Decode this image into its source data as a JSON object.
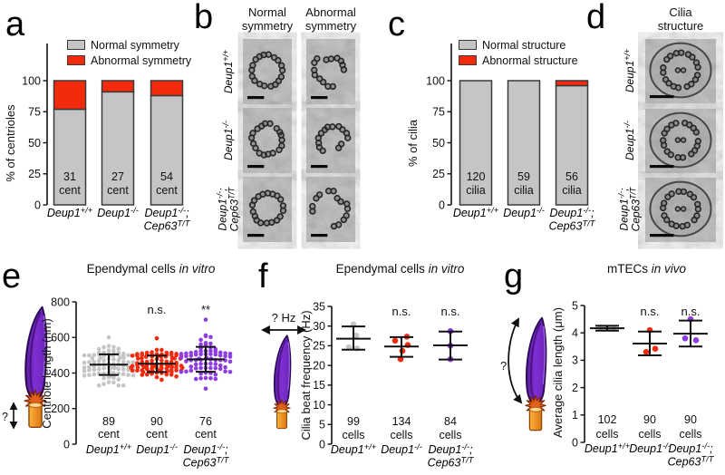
{
  "colors": {
    "gray": "#c5c5c5",
    "red": "#f42a0c",
    "purple": "#8d3ce0",
    "outline": "#3a3a3a",
    "axis": "#111111"
  },
  "genotypes": [
    {
      "lines": [
        [
          {
            "t": "Deup1"
          },
          {
            "t": "+/+",
            "sup": true
          }
        ]
      ]
    },
    {
      "lines": [
        [
          {
            "t": "Deup1"
          },
          {
            "t": "-/-",
            "sup": true
          }
        ]
      ]
    },
    {
      "lines": [
        [
          {
            "t": "Deup1"
          },
          {
            "t": "-/-",
            "sup": true
          },
          {
            "t": ";"
          }
        ],
        [
          {
            "t": "Cep63"
          },
          {
            "t": "T/T",
            "sup": true
          }
        ]
      ]
    }
  ],
  "panels": {
    "a": {
      "label": "a",
      "ylabel": "% of centrioles",
      "legend": [
        {
          "label": "Normal symmetry",
          "color": "gray"
        },
        {
          "label": "Abnormal symmetry",
          "color": "red"
        }
      ]
    },
    "b": {
      "label": "b",
      "col_headers": [
        [
          "Normal",
          "symmetry"
        ],
        [
          "Abnormal",
          "symmetry"
        ]
      ],
      "tile_kinds": [
        [
          "normal",
          "abnormal"
        ],
        [
          "normal",
          "abnormal"
        ],
        [
          "normal",
          "abnormal"
        ]
      ]
    },
    "c": {
      "label": "c",
      "ylabel": "% of cilia",
      "legend": [
        {
          "label": "Normal structure",
          "color": "gray"
        },
        {
          "label": "Abnormal structure",
          "color": "red"
        }
      ]
    },
    "d": {
      "label": "d",
      "col_header": [
        "Cilia",
        "structure"
      ],
      "tile_kinds": [
        "cilium",
        "cilium",
        "cilium"
      ]
    },
    "e": {
      "label": "e",
      "title": {
        "plain": "Ependymal cells ",
        "italic": "in vitro"
      },
      "ylabel": "Centriole length (nm)",
      "cartoon_query": "?"
    },
    "f": {
      "label": "f",
      "title": {
        "plain": "Ependymal cells ",
        "italic": "in vitro"
      },
      "ylabel": "Cilia beat frequency (Hz)",
      "cartoon_query": "? Hz"
    },
    "g": {
      "label": "g",
      "title": {
        "plain": "mTECs ",
        "italic": "in vivo"
      },
      "ylabel": "Average cilia length (μm)",
      "cartoon_query": "?"
    }
  },
  "chart_data": [
    {
      "id": "a",
      "type": "bar",
      "stacked": true,
      "title": "",
      "ylabel": "% of centrioles",
      "ylim": [
        0,
        100
      ],
      "yticks": [
        0,
        25,
        50,
        75,
        100
      ],
      "grid": false,
      "legend_position": "top-inside",
      "categories": [
        "Deup1+/+",
        "Deup1-/-",
        "Deup1-/-;Cep63T/T"
      ],
      "series": [
        {
          "name": "Normal symmetry",
          "color": "gray",
          "values": [
            77,
            91,
            88
          ]
        },
        {
          "name": "Abnormal symmetry",
          "color": "red",
          "values": [
            23,
            9,
            12
          ]
        }
      ],
      "bar_counts": [
        [
          "31",
          "cent"
        ],
        [
          "27",
          "cent"
        ],
        [
          "54",
          "cent"
        ]
      ]
    },
    {
      "id": "c",
      "type": "bar",
      "stacked": true,
      "title": "",
      "ylabel": "% of cilia",
      "ylim": [
        0,
        100
      ],
      "yticks": [
        0,
        25,
        50,
        75,
        100
      ],
      "grid": false,
      "legend_position": "top-inside",
      "categories": [
        "Deup1+/+",
        "Deup1-/-",
        "Deup1-/-;Cep63T/T"
      ],
      "series": [
        {
          "name": "Normal structure",
          "color": "gray",
          "values": [
            100,
            100,
            96
          ]
        },
        {
          "name": "Abnormal structure",
          "color": "red",
          "values": [
            0,
            0,
            4
          ]
        }
      ],
      "bar_counts": [
        [
          "120",
          "cilia"
        ],
        [
          "59",
          "cilia"
        ],
        [
          "56",
          "cilia"
        ]
      ]
    },
    {
      "id": "e",
      "type": "scatter",
      "style": "beeswarm",
      "title": "Ependymal cells in vitro",
      "ylabel": "Centriole length (nm)",
      "ylim": [
        0,
        800
      ],
      "yticks": [
        0,
        200,
        400,
        600,
        800
      ],
      "grid": false,
      "categories": [
        "Deup1+/+",
        "Deup1-/-",
        "Deup1-/-;Cep63T/T"
      ],
      "groups": [
        {
          "genotype": 0,
          "color": "gray",
          "n": 89,
          "mean": 447,
          "sd": 58,
          "min": 330,
          "max": 600,
          "count_label": [
            "89",
            "cent"
          ],
          "sig": ""
        },
        {
          "genotype": 1,
          "color": "red",
          "n": 90,
          "mean": 452,
          "sd": 46,
          "min": 362,
          "max": 595,
          "count_label": [
            "90",
            "cent"
          ],
          "sig": "n.s."
        },
        {
          "genotype": 2,
          "color": "purple",
          "n": 76,
          "mean": 477,
          "sd": 70,
          "min": 312,
          "max": 700,
          "count_label": [
            "76",
            "cent"
          ],
          "sig": "**"
        }
      ]
    },
    {
      "id": "f",
      "type": "scatter",
      "style": "points",
      "title": "Ependymal cells in vitro",
      "ylabel": "Cilia beat frequency (Hz)",
      "ylim": [
        0,
        35
      ],
      "yticks": [
        0,
        5,
        10,
        15,
        20,
        25,
        30,
        35
      ],
      "grid": false,
      "categories": [
        "Deup1+/+",
        "Deup1-/-",
        "Deup1-/-;Cep63T/T"
      ],
      "groups": [
        {
          "genotype": 0,
          "color": "gray",
          "points": [
            30.4,
            27.6,
            24.6,
            24.3
          ],
          "mean": 26.8,
          "err_low": 24.0,
          "err_high": 29.9,
          "count_label": [
            "99",
            "cells"
          ],
          "sig": ""
        },
        {
          "genotype": 1,
          "color": "red",
          "points": [
            27.3,
            26.3,
            25.2,
            23.7,
            21.6
          ],
          "mean": 24.8,
          "err_low": 22.2,
          "err_high": 27.2,
          "count_label": [
            "134",
            "cells"
          ],
          "sig": "n.s."
        },
        {
          "genotype": 2,
          "color": "purple",
          "points": [
            28.7,
            25.0,
            21.6
          ],
          "mean": 25.1,
          "err_low": 21.5,
          "err_high": 28.6,
          "count_label": [
            "84",
            "cells"
          ],
          "sig": "n.s."
        }
      ]
    },
    {
      "id": "g",
      "type": "scatter",
      "style": "points",
      "title": "mTECs in vivo",
      "ylabel": "Average cilia length (μm)",
      "ylim": [
        0,
        5
      ],
      "yticks": [
        0,
        1,
        2,
        3,
        4,
        5
      ],
      "grid": false,
      "categories": [
        "Deup1+/+",
        "Deup1-/-",
        "Deup1-/-;Cep63T/T"
      ],
      "groups": [
        {
          "genotype": 0,
          "color": "gray",
          "points": [
            4.2,
            4.17,
            4.15
          ],
          "mean": 4.17,
          "err_low": 4.08,
          "err_high": 4.26,
          "count_label": [
            "102",
            "cells"
          ],
          "sig": ""
        },
        {
          "genotype": 1,
          "color": "red",
          "points": [
            4.1,
            3.42,
            3.3
          ],
          "mean": 3.61,
          "err_low": 3.18,
          "err_high": 4.05,
          "count_label": [
            "90",
            "cells"
          ],
          "sig": "n.s."
        },
        {
          "genotype": 2,
          "color": "purple",
          "points": [
            4.5,
            3.8,
            3.73
          ],
          "mean": 3.97,
          "err_low": 3.5,
          "err_high": 4.45,
          "count_label": [
            "90",
            "cells"
          ],
          "sig": "n.s."
        }
      ]
    }
  ]
}
